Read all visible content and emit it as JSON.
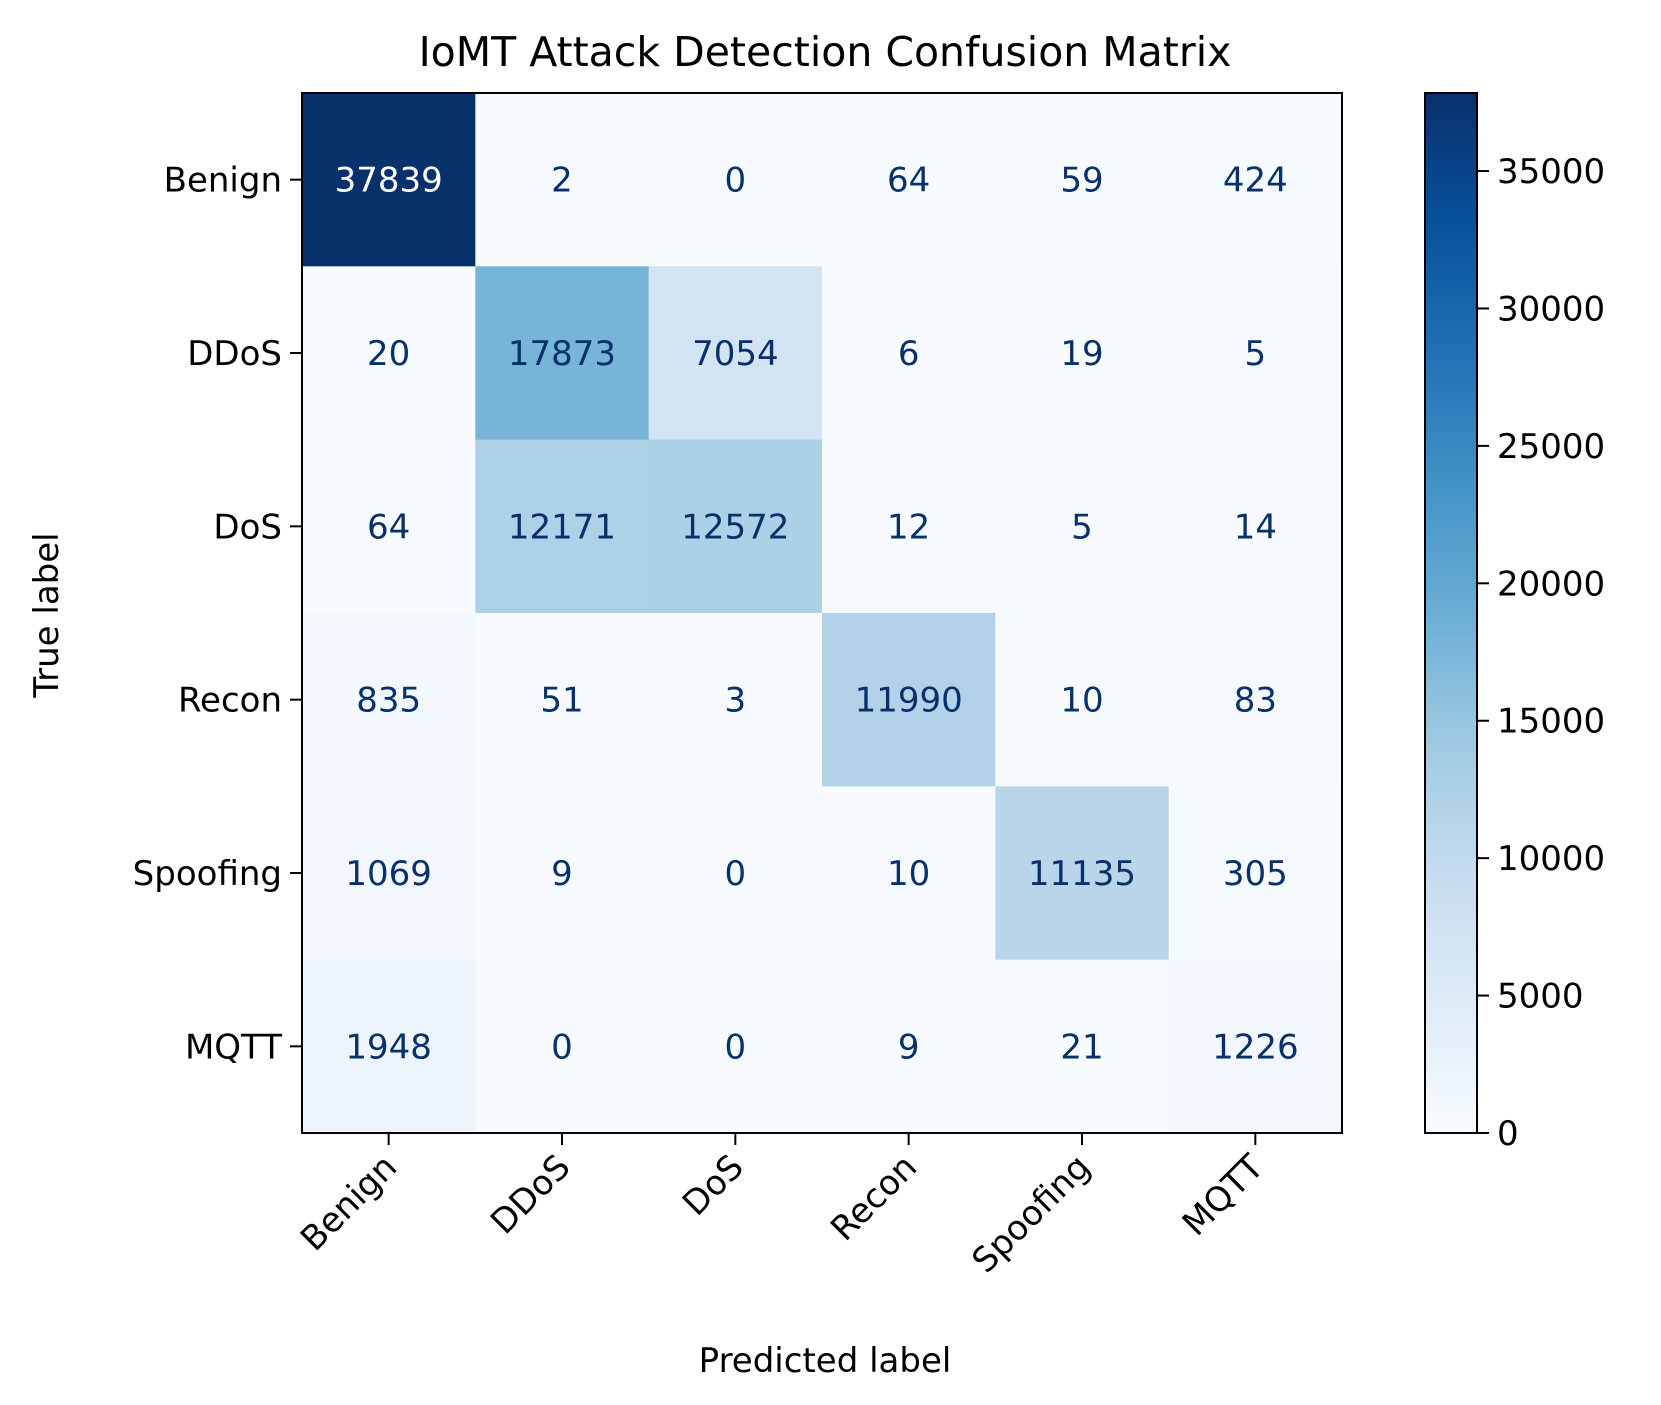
{
  "chart_data": {
    "type": "heatmap",
    "title": "IoMT Attack Detection Confusion Matrix",
    "xlabel": "Predicted label",
    "ylabel": "True label",
    "x_categories": [
      "Benign",
      "DDoS",
      "DoS",
      "Recon",
      "Spoofing",
      "MQTT"
    ],
    "y_categories": [
      "Benign",
      "DDoS",
      "DoS",
      "Recon",
      "Spoofing",
      "MQTT"
    ],
    "matrix": [
      [
        37839,
        2,
        0,
        64,
        59,
        424
      ],
      [
        20,
        17873,
        7054,
        6,
        19,
        5
      ],
      [
        64,
        12171,
        12572,
        12,
        5,
        14
      ],
      [
        835,
        51,
        3,
        11990,
        10,
        83
      ],
      [
        1069,
        9,
        0,
        10,
        11135,
        305
      ],
      [
        1948,
        0,
        0,
        9,
        21,
        1226
      ]
    ],
    "colormap": "Blues",
    "colorbar": {
      "range": [
        0,
        37839
      ],
      "ticks": [
        0,
        5000,
        10000,
        15000,
        20000,
        25000,
        30000,
        35000
      ]
    },
    "colors": {
      "light_text": "#ffffff",
      "dark_text": "#08306b"
    }
  }
}
